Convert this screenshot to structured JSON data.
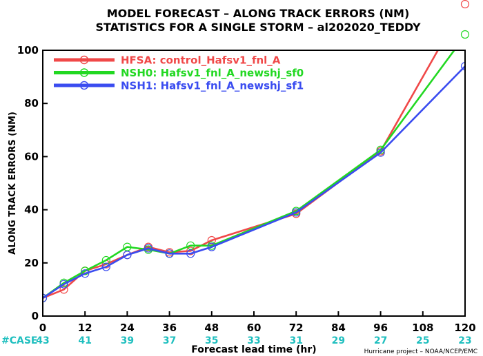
{
  "chart_data": {
    "type": "line",
    "title": "MODEL FORECAST – ALONG TRACK ERRORS (NM)",
    "subtitle": "STATISTICS FOR A SINGLE STORM – al202020_TEDDY",
    "ylabel": "ALONG TRACK ERRORS (NM)",
    "xlabel": "Forecast lead time (hr)",
    "xlim": [
      0,
      120
    ],
    "ylim": [
      0,
      100
    ],
    "x_ticks": [
      0,
      12,
      24,
      36,
      48,
      60,
      72,
      84,
      96,
      108,
      120
    ],
    "y_ticks": [
      0,
      20,
      40,
      60,
      80,
      100
    ],
    "grid": false,
    "legend_position": "top-left",
    "series": [
      {
        "name": "HFSA: control_Hafsv1_fnl_A",
        "color": "#f04848",
        "x": [
          0,
          6,
          12,
          18,
          24,
          30,
          36,
          42,
          48,
          72,
          96,
          120
        ],
        "y": [
          6.8,
          10.0,
          17.0,
          19.5,
          23.0,
          26.0,
          24.0,
          24.5,
          28.5,
          38.5,
          62.0,
          118.0
        ]
      },
      {
        "name": "NSH0: Hafsv1_fnl_A_newshj_sf0",
        "color": "#22d822",
        "x": [
          0,
          6,
          12,
          18,
          24,
          30,
          36,
          42,
          48,
          72,
          96,
          120
        ],
        "y": [
          6.8,
          12.5,
          17.0,
          21.0,
          26.0,
          25.0,
          23.5,
          26.5,
          26.5,
          39.5,
          62.5,
          105.5
        ]
      },
      {
        "name": "NSH1: Hafsv1_fnl_A_newshj_sf1",
        "color": "#3a4cf0",
        "x": [
          0,
          6,
          12,
          18,
          24,
          30,
          36,
          42,
          48,
          72,
          96,
          120
        ],
        "y": [
          6.8,
          12.0,
          16.0,
          18.5,
          23.0,
          25.5,
          23.5,
          23.5,
          26.0,
          39.0,
          61.5,
          94.0
        ]
      }
    ],
    "case_label": "#CASE",
    "case_counts": [
      43,
      41,
      39,
      37,
      35,
      33,
      31,
      29,
      27,
      25,
      23
    ],
    "credit": "Hurricane project – NOAA/NCEP/EMC"
  }
}
